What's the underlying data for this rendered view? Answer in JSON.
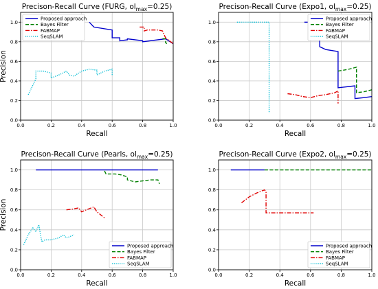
{
  "chart_data": [
    {
      "type": "line",
      "title": "Precison-Recall Curve (FURG, ol",
      "title_sub": "max",
      "title_suffix": "=0.25)",
      "xlabel": "Recall",
      "ylabel": "Precision",
      "xlim": [
        0,
        1
      ],
      "ylim": [
        0,
        1.1
      ],
      "xticks": [
        "0.0",
        "0.2",
        "0.4",
        "0.6",
        "0.8",
        "1.0"
      ],
      "yticks": [
        "0.0",
        "0.2",
        "0.4",
        "0.6",
        "0.8",
        "1.0"
      ],
      "xtick_values": [
        0,
        0.2,
        0.4,
        0.6,
        0.8,
        1.0
      ],
      "ytick_values": [
        0,
        0.2,
        0.4,
        0.6,
        0.8,
        1.0
      ],
      "grid": true,
      "legend": "top-left",
      "series": [
        {
          "name": "Proposed approach",
          "color": "#0000cc",
          "dash": "solid",
          "x": [
            0.45,
            0.48,
            0.6,
            0.6,
            0.65,
            0.65,
            0.7,
            0.7,
            0.8,
            0.8,
            0.95,
            1.0
          ],
          "y": [
            1.0,
            0.95,
            0.92,
            0.84,
            0.84,
            0.81,
            0.82,
            0.83,
            0.81,
            0.8,
            0.83,
            0.78
          ]
        },
        {
          "name": "Bayes Filter",
          "color": "#008000",
          "dash": "dashed",
          "x": [
            0.93,
            0.95,
            0.95,
            0.96
          ],
          "y": [
            0.83,
            0.83,
            0.79,
            0.78
          ]
        },
        {
          "name": "FABMAP",
          "color": "#e00000",
          "dash": "dashdot",
          "x": [
            0.78,
            0.81,
            0.81,
            0.83,
            0.9,
            0.93,
            0.95,
            1.0
          ],
          "y": [
            0.95,
            0.95,
            0.91,
            0.92,
            0.92,
            0.91,
            0.84,
            0.78
          ]
        },
        {
          "name": "SeqSLAM",
          "color": "#00bcd4",
          "dash": "dotted",
          "x": [
            0.05,
            0.1,
            0.1,
            0.15,
            0.15,
            0.2,
            0.2,
            0.25,
            0.3,
            0.32,
            0.35,
            0.4,
            0.45,
            0.5,
            0.5,
            0.55,
            0.6,
            0.6
          ],
          "y": [
            0.26,
            0.42,
            0.5,
            0.5,
            0.5,
            0.48,
            0.43,
            0.46,
            0.5,
            0.46,
            0.45,
            0.5,
            0.52,
            0.51,
            0.46,
            0.5,
            0.52,
            0.46
          ]
        }
      ]
    },
    {
      "type": "line",
      "title": "Precison-Recall Curve (Expo1, ol",
      "title_sub": "max",
      "title_suffix": "=0.25)",
      "xlabel": "Recall",
      "ylabel": "",
      "xlim": [
        0,
        1
      ],
      "ylim": [
        0,
        1.1
      ],
      "xticks": [
        "0.0",
        "0.2",
        "0.4",
        "0.6",
        "0.8",
        "1.0"
      ],
      "yticks": [
        "0.0",
        "0.2",
        "0.4",
        "0.6",
        "0.8",
        "1.0"
      ],
      "xtick_values": [
        0,
        0.2,
        0.4,
        0.6,
        0.8,
        1.0
      ],
      "ytick_values": [
        0,
        0.2,
        0.4,
        0.6,
        0.8,
        1.0
      ],
      "grid": true,
      "legend": "top-right",
      "series": [
        {
          "name": "Proposed approach",
          "color": "#0000cc",
          "dash": "solid",
          "x": [
            0.56,
            0.6,
            0.62,
            0.62,
            0.66,
            0.66,
            0.7,
            0.78,
            0.78,
            0.89,
            0.89,
            0.95,
            1.0
          ],
          "y": [
            1.0,
            1.0,
            0.96,
            0.93,
            0.9,
            0.75,
            0.72,
            0.7,
            0.33,
            0.35,
            0.22,
            0.23,
            0.24
          ]
        },
        {
          "name": "Bayes Filter",
          "color": "#008000",
          "dash": "dashed",
          "x": [
            0.78,
            0.85,
            0.9,
            0.9,
            0.95,
            1.0
          ],
          "y": [
            0.5,
            0.52,
            0.54,
            0.28,
            0.29,
            0.31
          ]
        },
        {
          "name": "FABMAP",
          "color": "#e00000",
          "dash": "dashdot",
          "x": [
            0.45,
            0.5,
            0.55,
            0.6,
            0.65,
            0.7,
            0.76,
            0.78,
            0.78
          ],
          "y": [
            0.27,
            0.26,
            0.24,
            0.23,
            0.25,
            0.26,
            0.28,
            0.3,
            0.17
          ]
        },
        {
          "name": "SeqSLAM",
          "color": "#00bcd4",
          "dash": "dotted",
          "x": [
            0.12,
            0.33,
            0.33
          ],
          "y": [
            1.0,
            1.0,
            0.07
          ]
        }
      ]
    },
    {
      "type": "line",
      "title": "Precison-Recall Curve (Pearls, ol",
      "title_sub": "max",
      "title_suffix": "=0.25)",
      "xlabel": "Recall",
      "ylabel": "Precision",
      "xlim": [
        0,
        1
      ],
      "ylim": [
        0,
        1.1
      ],
      "xticks": [
        "0.0",
        "0.2",
        "0.4",
        "0.6",
        "0.8",
        "1.0"
      ],
      "yticks": [
        "0.0",
        "0.2",
        "0.4",
        "0.6",
        "0.8",
        "1.0"
      ],
      "xtick_values": [
        0,
        0.2,
        0.4,
        0.6,
        0.8,
        1.0
      ],
      "ytick_values": [
        0,
        0.2,
        0.4,
        0.6,
        0.8,
        1.0
      ],
      "grid": true,
      "legend": "bottom-right",
      "series": [
        {
          "name": "Proposed approach",
          "color": "#0000cc",
          "dash": "solid",
          "x": [
            0.1,
            0.55,
            0.9
          ],
          "y": [
            1.0,
            1.0,
            1.0
          ]
        },
        {
          "name": "Bayes Filter",
          "color": "#008000",
          "dash": "dashed",
          "x": [
            0.55,
            0.56,
            0.62,
            0.66,
            0.7,
            0.7,
            0.75,
            0.8,
            0.85,
            0.9,
            0.91
          ],
          "y": [
            0.99,
            0.96,
            0.96,
            0.95,
            0.93,
            0.9,
            0.88,
            0.89,
            0.9,
            0.9,
            0.86
          ]
        },
        {
          "name": "FABMAP",
          "color": "#e00000",
          "dash": "dashdot",
          "x": [
            0.3,
            0.35,
            0.38,
            0.4,
            0.43,
            0.48,
            0.5,
            0.55
          ],
          "y": [
            0.6,
            0.61,
            0.62,
            0.58,
            0.6,
            0.63,
            0.58,
            0.52
          ]
        },
        {
          "name": "SeqSLAM",
          "color": "#00bcd4",
          "dash": "dotted",
          "x": [
            0.02,
            0.05,
            0.08,
            0.1,
            0.12,
            0.13,
            0.14,
            0.16,
            0.2,
            0.25,
            0.28,
            0.3,
            0.32,
            0.35
          ],
          "y": [
            0.25,
            0.35,
            0.42,
            0.38,
            0.45,
            0.35,
            0.28,
            0.3,
            0.3,
            0.32,
            0.35,
            0.32,
            0.33,
            0.35
          ]
        }
      ]
    },
    {
      "type": "line",
      "title": "Precison-Recall Curve (Expo2, ol",
      "title_sub": "max",
      "title_suffix": "=0.25)",
      "xlabel": "Recall",
      "ylabel": "",
      "xlim": [
        0,
        1
      ],
      "ylim": [
        0,
        1.1
      ],
      "xticks": [
        "0.0",
        "0.2",
        "0.4",
        "0.6",
        "0.8",
        "1.0"
      ],
      "yticks": [
        "0.0",
        "0.2",
        "0.4",
        "0.6",
        "0.8",
        "1.0"
      ],
      "xtick_values": [
        0,
        0.2,
        0.4,
        0.6,
        0.8,
        1.0
      ],
      "ytick_values": [
        0,
        0.2,
        0.4,
        0.6,
        0.8,
        1.0
      ],
      "grid": true,
      "legend": "bottom-right",
      "series": [
        {
          "name": "Proposed approach",
          "color": "#0000cc",
          "dash": "solid",
          "x": [
            0.08,
            0.3
          ],
          "y": [
            1.0,
            1.0
          ]
        },
        {
          "name": "Bayes Filter",
          "color": "#008000",
          "dash": "dashed",
          "x": [
            0.3,
            1.0
          ],
          "y": [
            1.0,
            1.0
          ]
        },
        {
          "name": "FABMAP",
          "color": "#e00000",
          "dash": "dashdot",
          "x": [
            0.15,
            0.2,
            0.25,
            0.3,
            0.31,
            0.31,
            0.62
          ],
          "y": [
            0.67,
            0.73,
            0.77,
            0.8,
            0.78,
            0.57,
            0.57
          ]
        },
        {
          "name": "SeqSLAM",
          "color": "#00bcd4",
          "dash": "dotted",
          "x": [],
          "y": []
        }
      ]
    }
  ]
}
